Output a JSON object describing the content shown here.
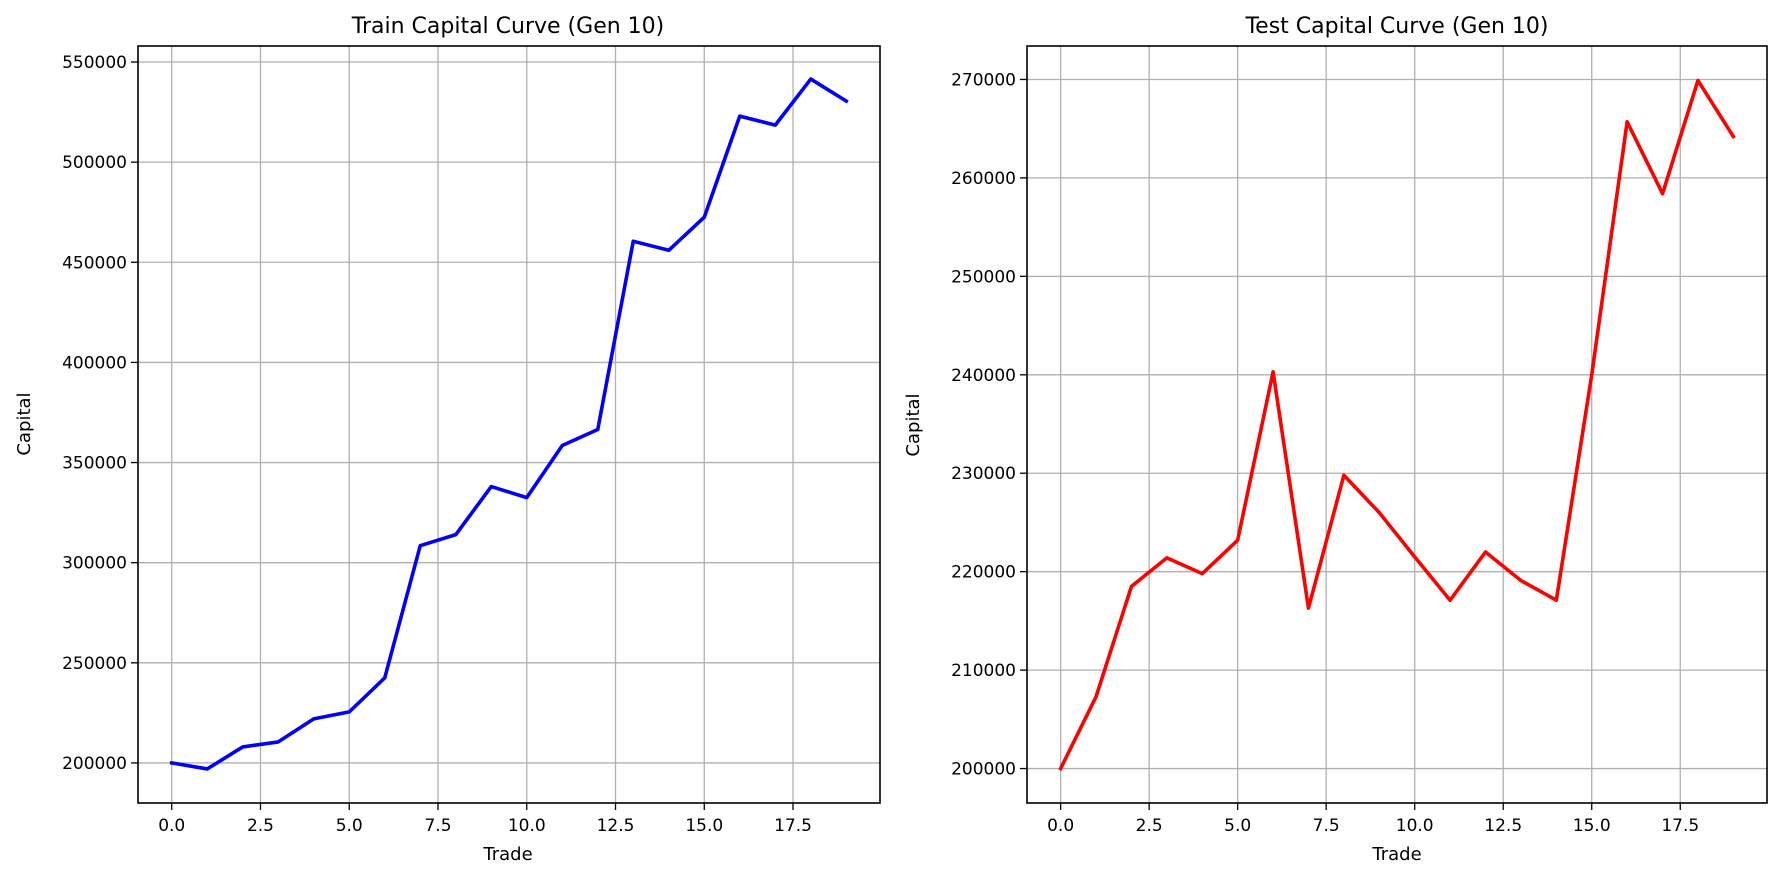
{
  "chart_data": [
    {
      "type": "line",
      "title": "Train Capital Curve (Gen 10)",
      "xlabel": "Trade",
      "ylabel": "Capital",
      "grid": true,
      "xlim": [
        -0.95,
        19.95
      ],
      "ylim": [
        180000,
        558000
      ],
      "xticks": [
        0.0,
        2.5,
        5.0,
        7.5,
        10.0,
        12.5,
        15.0,
        17.5
      ],
      "xtick_labels": [
        "0.0",
        "2.5",
        "5.0",
        "7.5",
        "10.0",
        "12.5",
        "15.0",
        "17.5"
      ],
      "yticks": [
        200000,
        250000,
        300000,
        350000,
        400000,
        450000,
        500000,
        550000
      ],
      "ytick_labels": [
        "200000",
        "250000",
        "300000",
        "350000",
        "400000",
        "450000",
        "500000",
        "550000"
      ],
      "color": "#0000ff",
      "x": [
        0,
        1,
        2,
        3,
        4,
        5,
        6,
        7,
        8,
        9,
        10,
        11,
        12,
        13,
        14,
        15,
        16,
        17,
        18,
        19
      ],
      "values": [
        200000,
        197000,
        208000,
        210500,
        222000,
        225500,
        242500,
        308500,
        314000,
        338000,
        332500,
        358500,
        366500,
        460500,
        456000,
        472500,
        523000,
        518500,
        541500,
        530500
      ]
    },
    {
      "type": "line",
      "title": "Test Capital Curve (Gen 10)",
      "xlabel": "Trade",
      "ylabel": "Capital",
      "grid": true,
      "xlim": [
        -0.95,
        19.95
      ],
      "ylim": [
        196500,
        273400
      ],
      "xticks": [
        0.0,
        2.5,
        5.0,
        7.5,
        10.0,
        12.5,
        15.0,
        17.5
      ],
      "xtick_labels": [
        "0.0",
        "2.5",
        "5.0",
        "7.5",
        "10.0",
        "12.5",
        "15.0",
        "17.5"
      ],
      "yticks": [
        200000,
        210000,
        220000,
        230000,
        240000,
        250000,
        260000,
        270000
      ],
      "ytick_labels": [
        "200000",
        "210000",
        "220000",
        "230000",
        "240000",
        "250000",
        "260000",
        "270000"
      ],
      "color": "#ff0000",
      "x": [
        0,
        1,
        2,
        3,
        4,
        5,
        6,
        7,
        8,
        9,
        10,
        11,
        12,
        13,
        14,
        15,
        16,
        17,
        18,
        19
      ],
      "values": [
        200000,
        207300,
        218500,
        221400,
        219800,
        223200,
        240300,
        216300,
        229800,
        226000,
        221500,
        217100,
        222000,
        219100,
        217100,
        240000,
        265700,
        258400,
        269900,
        264200
      ]
    }
  ]
}
